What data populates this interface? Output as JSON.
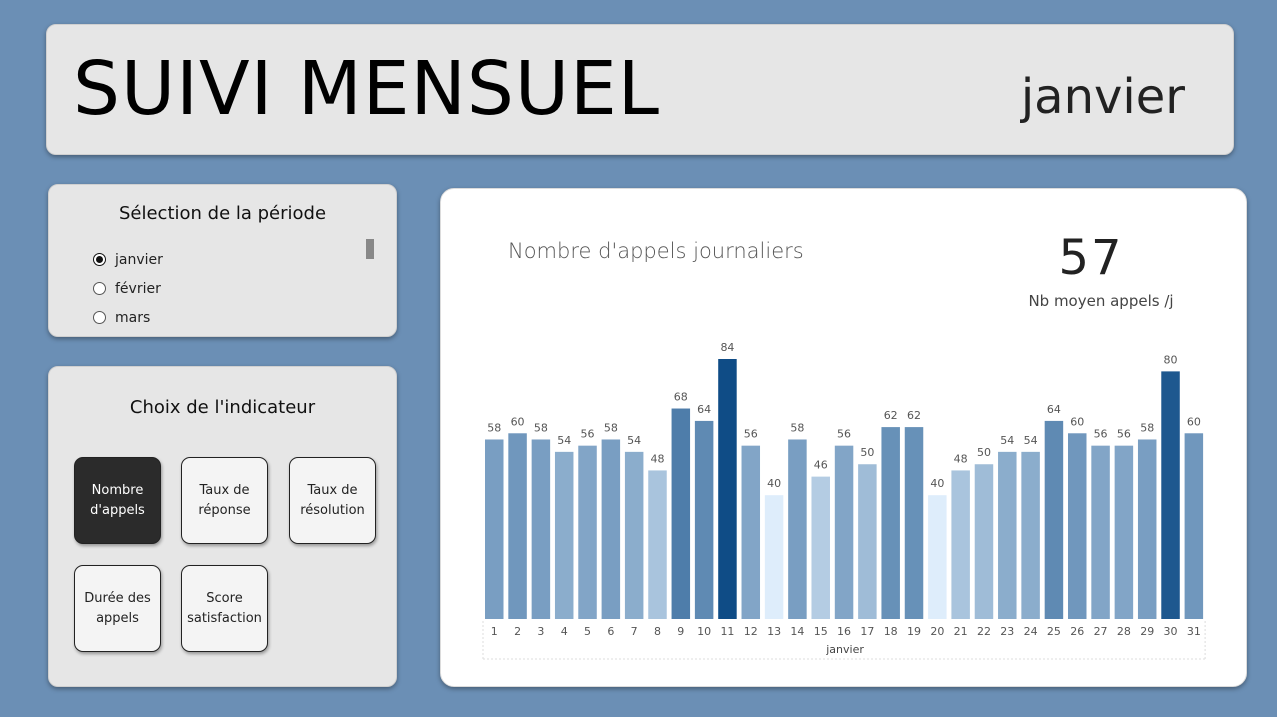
{
  "header": {
    "title": "SUIVI MENSUEL",
    "current_month": "janvier"
  },
  "period_selector": {
    "heading": "Sélection de la période",
    "options": [
      {
        "label": "janvier",
        "selected": true
      },
      {
        "label": "février",
        "selected": false
      },
      {
        "label": "mars",
        "selected": false
      }
    ]
  },
  "indicator_selector": {
    "heading": "Choix de l'indicateur",
    "buttons": [
      {
        "label": "Nombre d'appels",
        "active": true
      },
      {
        "label": "Taux de réponse",
        "active": false
      },
      {
        "label": "Taux de résolution",
        "active": false
      },
      {
        "label": "Durée des appels",
        "active": false
      },
      {
        "label": "Score satisfaction",
        "active": false
      }
    ]
  },
  "kpi": {
    "value": "57",
    "label": "Nb moyen appels /j"
  },
  "chart_data": {
    "type": "bar",
    "title": "Nombre d'appels journaliers",
    "xlabel": "janvier",
    "ylabel": "",
    "categories": [
      "1",
      "2",
      "3",
      "4",
      "5",
      "6",
      "7",
      "8",
      "9",
      "10",
      "11",
      "12",
      "13",
      "14",
      "15",
      "16",
      "17",
      "18",
      "19",
      "20",
      "21",
      "22",
      "23",
      "24",
      "25",
      "26",
      "27",
      "28",
      "29",
      "30",
      "31"
    ],
    "values": [
      58,
      60,
      58,
      54,
      56,
      58,
      54,
      48,
      68,
      64,
      84,
      56,
      40,
      58,
      46,
      56,
      50,
      62,
      62,
      40,
      48,
      50,
      54,
      54,
      64,
      60,
      56,
      56,
      58,
      80,
      60
    ],
    "ylim": [
      0,
      84
    ],
    "grid": false,
    "color_scale": {
      "low": "#deedfb",
      "high": "#0f4c86"
    }
  }
}
